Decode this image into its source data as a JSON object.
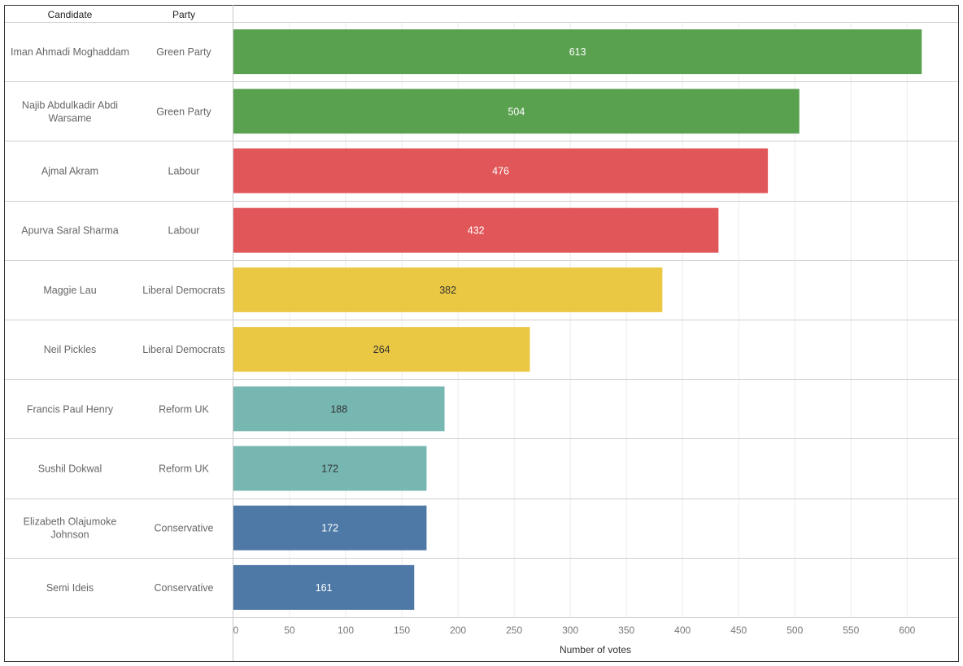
{
  "chart_data": {
    "type": "bar",
    "orientation": "horizontal",
    "column_headers": {
      "candidate": "Candidate",
      "party": "Party"
    },
    "xlabel": "Number of votes",
    "xlim": [
      0,
      650
    ],
    "xticks": [
      0,
      50,
      100,
      150,
      200,
      250,
      300,
      350,
      400,
      450,
      500,
      550,
      600
    ],
    "grid": true,
    "rows": [
      {
        "candidate": [
          "Iman Ahmadi Moghaddam"
        ],
        "party": "Green Party",
        "value": 613,
        "color": "#59a14f",
        "label_color": "#ffffff"
      },
      {
        "candidate": [
          "Najib Abdulkadir Abdi",
          "Warsame"
        ],
        "party": "Green Party",
        "value": 504,
        "color": "#59a14f",
        "label_color": "#ffffff"
      },
      {
        "candidate": [
          "Ajmal Akram"
        ],
        "party": "Labour",
        "value": 476,
        "color": "#e15759",
        "label_color": "#ffffff"
      },
      {
        "candidate": [
          "Apurva Saral Sharma"
        ],
        "party": "Labour",
        "value": 432,
        "color": "#e15759",
        "label_color": "#ffffff"
      },
      {
        "candidate": [
          "Maggie Lau"
        ],
        "party": "Liberal Democrats",
        "value": 382,
        "color": "#ebc844",
        "label_color": "#333333"
      },
      {
        "candidate": [
          "Neil Pickles"
        ],
        "party": "Liberal Democrats",
        "value": 264,
        "color": "#ebc844",
        "label_color": "#333333"
      },
      {
        "candidate": [
          "Francis Paul Henry"
        ],
        "party": "Reform UK",
        "value": 188,
        "color": "#76b7b2",
        "label_color": "#333333"
      },
      {
        "candidate": [
          "Sushil Dokwal"
        ],
        "party": "Reform UK",
        "value": 172,
        "color": "#76b7b2",
        "label_color": "#333333"
      },
      {
        "candidate": [
          "Elizabeth Olajumoke",
          "Johnson"
        ],
        "party": "Conservative",
        "value": 172,
        "color": "#4e79a7",
        "label_color": "#ffffff"
      },
      {
        "candidate": [
          "Semi Ideis"
        ],
        "party": "Conservative",
        "value": 161,
        "color": "#4e79a7",
        "label_color": "#ffffff"
      }
    ]
  }
}
